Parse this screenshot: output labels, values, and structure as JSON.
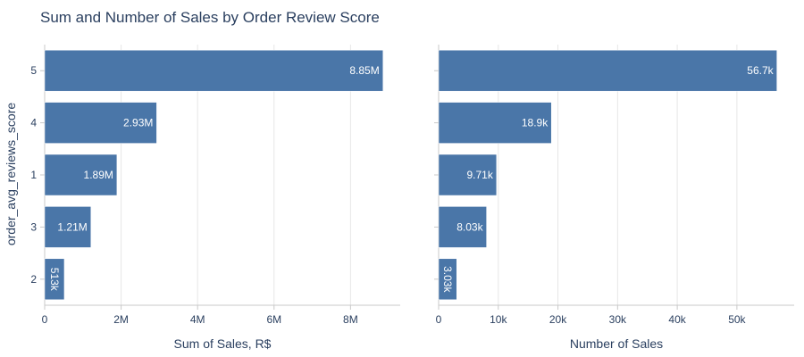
{
  "title": "Sum and Number of Sales by Order Review Score",
  "y_axis_title": "order_avg_reviews_score",
  "colors": {
    "bar": "#4a76a8"
  },
  "chart_data": [
    {
      "type": "bar",
      "orientation": "horizontal",
      "categories": [
        "5",
        "4",
        "1",
        "3",
        "2"
      ],
      "values": [
        8850000,
        2930000,
        1890000,
        1210000,
        513000
      ],
      "labels": [
        "8.85M",
        "2.93M",
        "1.89M",
        "1.21M",
        "513k"
      ],
      "xlabel": "Sum of Sales, R$",
      "ylabel": "order_avg_reviews_score",
      "xlim": [
        0,
        9300000
      ],
      "xticks": [
        0,
        2000000,
        4000000,
        6000000,
        8000000
      ],
      "xtick_labels": [
        "0",
        "2M",
        "4M",
        "6M",
        "8M"
      ],
      "grid": true
    },
    {
      "type": "bar",
      "orientation": "horizontal",
      "categories": [
        "5",
        "4",
        "1",
        "3",
        "2"
      ],
      "values": [
        56700,
        18900,
        9710,
        8030,
        3030
      ],
      "labels": [
        "56.7k",
        "18.9k",
        "9.71k",
        "8.03k",
        "3.03k"
      ],
      "xlabel": "Number of Sales",
      "ylabel": "",
      "xlim": [
        0,
        59600
      ],
      "xticks": [
        0,
        10000,
        20000,
        30000,
        40000,
        50000
      ],
      "xtick_labels": [
        "0",
        "10k",
        "20k",
        "30k",
        "40k",
        "50k"
      ],
      "grid": true
    }
  ]
}
